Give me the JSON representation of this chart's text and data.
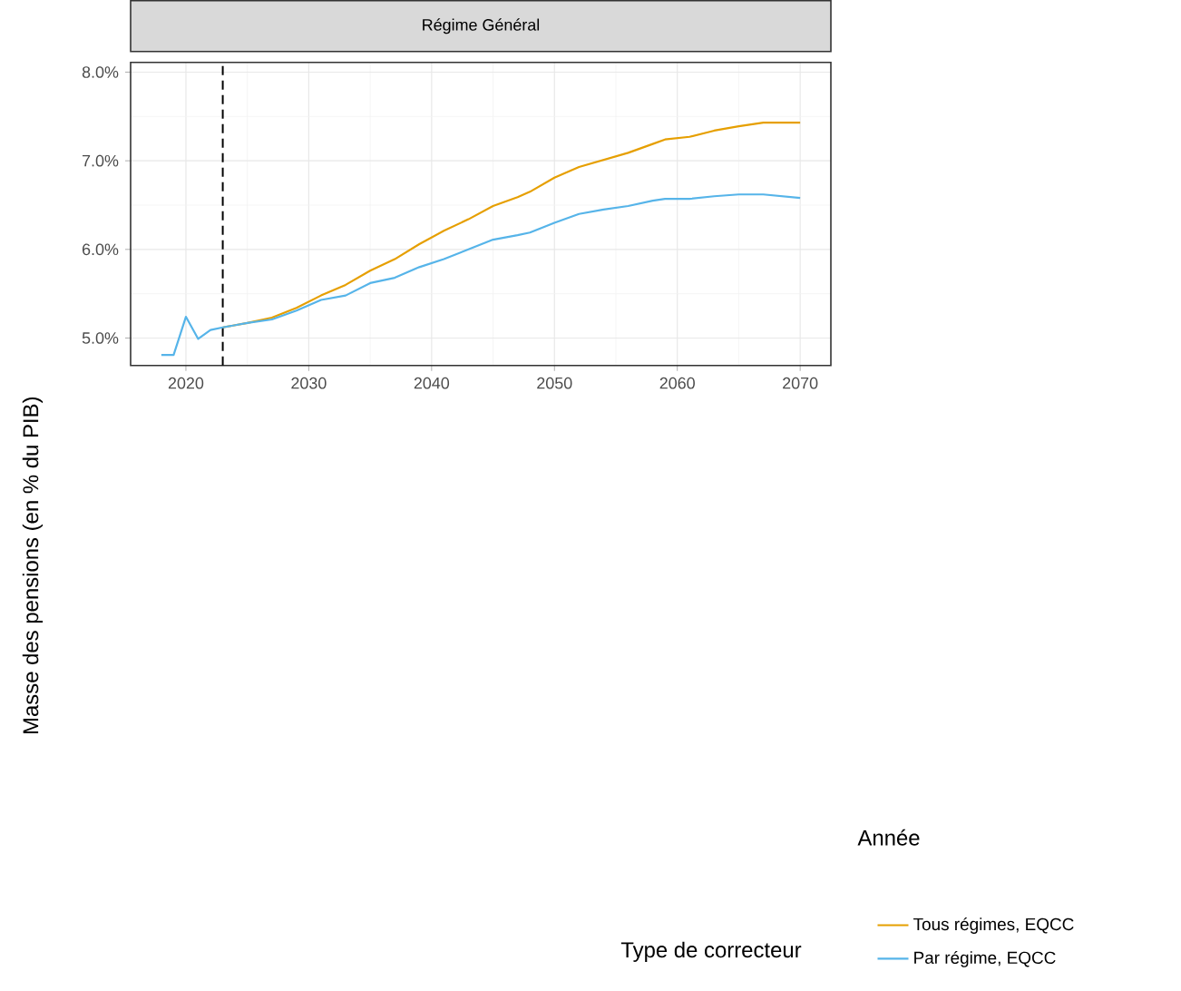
{
  "chart_data": {
    "type": "line",
    "title": "Régime Général",
    "annotations": [
      "Année"
    ],
    "ylabel": "Masse des pensions (en % du PIB)",
    "legend_title": "Type de correcteur",
    "xlim": [
      2015.5,
      2072.5
    ],
    "xticks": [
      2020,
      2030,
      2040,
      2050,
      2060,
      2070
    ],
    "ylim": [
      4.69,
      8.11
    ],
    "yticks": [
      {
        "value": 5,
        "label": "5.0%"
      },
      {
        "value": 6,
        "label": "6.0%"
      },
      {
        "value": 7,
        "label": "7.0%"
      },
      {
        "value": 8,
        "label": "8.0%"
      }
    ],
    "grid": true,
    "legend": "bottom right",
    "line_style": "solid",
    "ref_lines": [
      {
        "axis": "x",
        "value": 2023,
        "color": "#000000",
        "line_style": "dashed"
      }
    ],
    "series": [
      {
        "name": "Tous régimes, EQCC",
        "color": "#e69f00",
        "x": [
          2023,
          2025,
          2027,
          2029,
          2031,
          2033,
          2035,
          2037,
          2039,
          2041,
          2043,
          2045,
          2047,
          2048,
          2050,
          2052,
          2054,
          2056,
          2058,
          2059,
          2061,
          2063,
          2065,
          2067,
          2070
        ],
        "values": [
          5.12,
          5.17,
          5.23,
          5.34,
          5.48,
          5.6,
          5.76,
          5.89,
          6.06,
          6.21,
          6.34,
          6.49,
          6.59,
          6.65,
          6.81,
          6.93,
          7.01,
          7.09,
          7.19,
          7.24,
          7.27,
          7.34,
          7.39,
          7.43,
          7.43
        ]
      },
      {
        "name": "Par régime, EQCC",
        "color": "#56b4e9",
        "x": [
          2018,
          2019,
          2020,
          2021,
          2022,
          2023,
          2025,
          2027,
          2029,
          2031,
          2033,
          2035,
          2037,
          2039,
          2041,
          2043,
          2045,
          2047,
          2048,
          2050,
          2052,
          2054,
          2056,
          2058,
          2059,
          2061,
          2063,
          2065,
          2067,
          2070
        ],
        "values": [
          4.81,
          4.81,
          5.24,
          4.99,
          5.09,
          5.12,
          5.17,
          5.21,
          5.31,
          5.43,
          5.48,
          5.62,
          5.68,
          5.8,
          5.89,
          6.0,
          6.11,
          6.16,
          6.19,
          6.3,
          6.4,
          6.45,
          6.49,
          6.55,
          6.57,
          6.57,
          6.6,
          6.62,
          6.62,
          6.58
        ]
      }
    ]
  }
}
